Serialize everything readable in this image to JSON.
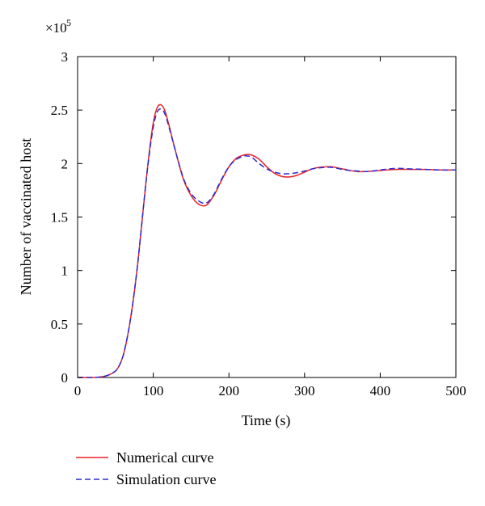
{
  "chart_data": {
    "type": "line",
    "title": "",
    "xlabel": "Time (s)",
    "ylabel": "Number of vaccinated host",
    "y_multiplier": "×10",
    "y_multiplier_exp": "5",
    "xlim": [
      0,
      500
    ],
    "ylim": [
      0,
      3
    ],
    "x_ticks": [
      0,
      100,
      200,
      300,
      400,
      500
    ],
    "x_tick_labels": [
      "0",
      "100",
      "200",
      "300",
      "400",
      "500"
    ],
    "y_ticks": [
      0,
      0.5,
      1,
      1.5,
      2,
      2.5,
      3
    ],
    "y_tick_labels": [
      "0",
      "0.5",
      "1",
      "1.5",
      "2",
      "2.5",
      "3"
    ],
    "grid": false,
    "legend_position": "bottom-left, below plot",
    "series": [
      {
        "name": "Numerical curve",
        "color": "#e8202a",
        "style": "solid",
        "x": [
          0,
          20,
          30,
          40,
          50,
          55,
          60,
          65,
          70,
          75,
          80,
          85,
          90,
          95,
          100,
          105,
          110,
          115,
          120,
          130,
          140,
          150,
          160,
          170,
          180,
          190,
          200,
          210,
          220,
          225,
          230,
          240,
          250,
          260,
          270,
          280,
          290,
          300,
          310,
          320,
          330,
          335,
          340,
          350,
          360,
          370,
          380,
          390,
          400,
          420,
          440,
          460,
          480,
          500
        ],
        "y": [
          0,
          0.0,
          0.005,
          0.02,
          0.06,
          0.11,
          0.2,
          0.35,
          0.55,
          0.8,
          1.1,
          1.45,
          1.8,
          2.12,
          2.38,
          2.52,
          2.55,
          2.5,
          2.38,
          2.1,
          1.85,
          1.7,
          1.62,
          1.61,
          1.7,
          1.84,
          1.97,
          2.05,
          2.08,
          2.085,
          2.08,
          2.04,
          1.97,
          1.91,
          1.88,
          1.875,
          1.89,
          1.92,
          1.95,
          1.965,
          1.97,
          1.97,
          1.965,
          1.95,
          1.935,
          1.925,
          1.925,
          1.93,
          1.935,
          1.945,
          1.945,
          1.945,
          1.94,
          1.94
        ]
      },
      {
        "name": "Simulation curve",
        "color": "#2b2bcc",
        "style": "dashed",
        "x": [
          0,
          20,
          30,
          40,
          50,
          55,
          60,
          65,
          70,
          75,
          80,
          85,
          90,
          95,
          100,
          105,
          110,
          115,
          120,
          130,
          140,
          150,
          160,
          170,
          180,
          190,
          200,
          210,
          220,
          225,
          230,
          240,
          250,
          260,
          270,
          280,
          290,
          300,
          310,
          320,
          330,
          335,
          340,
          350,
          360,
          370,
          380,
          390,
          400,
          420,
          440,
          460,
          480,
          500
        ],
        "y": [
          0,
          0.0,
          0.005,
          0.02,
          0.06,
          0.11,
          0.2,
          0.35,
          0.55,
          0.8,
          1.1,
          1.45,
          1.8,
          2.1,
          2.34,
          2.48,
          2.51,
          2.47,
          2.36,
          2.1,
          1.86,
          1.72,
          1.65,
          1.63,
          1.71,
          1.85,
          1.97,
          2.04,
          2.07,
          2.07,
          2.06,
          2.0,
          1.95,
          1.92,
          1.905,
          1.905,
          1.915,
          1.93,
          1.95,
          1.96,
          1.965,
          1.965,
          1.96,
          1.945,
          1.935,
          1.93,
          1.925,
          1.93,
          1.94,
          1.955,
          1.95,
          1.945,
          1.94,
          1.94
        ]
      }
    ]
  }
}
